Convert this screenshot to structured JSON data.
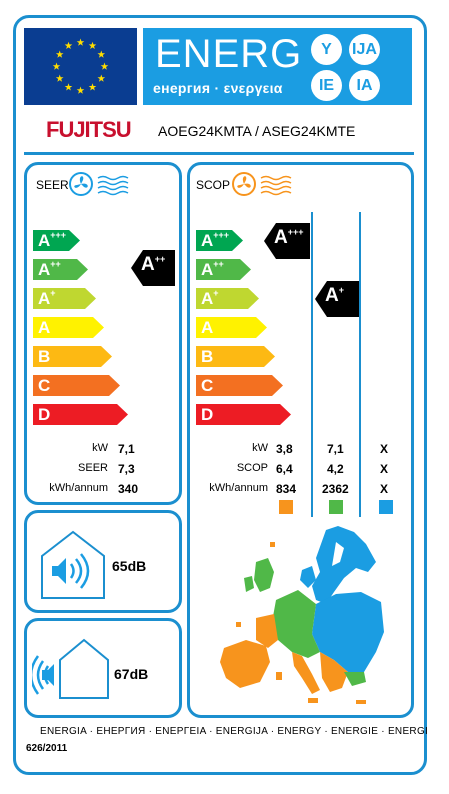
{
  "header": {
    "energy_title": "ENERG",
    "energy_subtitle": "енергия · ενεργεια",
    "languages": [
      "Y",
      "IJA",
      "IE",
      "IA"
    ],
    "brand": "FUJITSU",
    "model": "AOEG24KMTA / ASEG24KMTE"
  },
  "cooling": {
    "title": "SEER",
    "classes": [
      {
        "letter": "A",
        "sup": "+++",
        "color": "#00a651"
      },
      {
        "letter": "A",
        "sup": "++",
        "color": "#50b848"
      },
      {
        "letter": "A",
        "sup": "+",
        "color": "#bfd730"
      },
      {
        "letter": "A",
        "sup": "",
        "color": "#fff200"
      },
      {
        "letter": "B",
        "sup": "",
        "color": "#fdb913"
      },
      {
        "letter": "C",
        "sup": "",
        "color": "#f37021"
      },
      {
        "letter": "D",
        "sup": "",
        "color": "#ed1c24"
      }
    ],
    "rating": {
      "letter": "A",
      "sup": "++"
    },
    "rows": [
      {
        "label": "kW",
        "value": "7,1"
      },
      {
        "label": "SEER",
        "value": "7,3"
      },
      {
        "label": "kWh/annum",
        "value": "340"
      }
    ]
  },
  "heating": {
    "title": "SCOP",
    "classes": [
      {
        "letter": "A",
        "sup": "+++",
        "color": "#00a651"
      },
      {
        "letter": "A",
        "sup": "++",
        "color": "#50b848"
      },
      {
        "letter": "A",
        "sup": "+",
        "color": "#bfd730"
      },
      {
        "letter": "A",
        "sup": "",
        "color": "#fff200"
      },
      {
        "letter": "B",
        "sup": "",
        "color": "#fdb913"
      },
      {
        "letter": "C",
        "sup": "",
        "color": "#f37021"
      },
      {
        "letter": "D",
        "sup": "",
        "color": "#ed1c24"
      }
    ],
    "ratings": [
      {
        "letter": "A",
        "sup": "+++"
      },
      {
        "letter": "A",
        "sup": "+"
      }
    ],
    "row_labels": [
      "kW",
      "SCOP",
      "kWh/annum"
    ],
    "columns": [
      {
        "color": "#f7941d",
        "values": [
          "3,8",
          "6,4",
          "834"
        ]
      },
      {
        "color": "#50b848",
        "values": [
          "7,1",
          "4,2",
          "2362"
        ]
      },
      {
        "color": "#1b9de2",
        "values": [
          "X",
          "X",
          "X"
        ]
      }
    ]
  },
  "noise": {
    "indoor": "65dB",
    "outdoor": "67dB"
  },
  "footer": {
    "languages": "ENERGIA · ЕНЕРГИЯ · ΕΝΕΡΓΕΙΑ · ENERGIJA · ENERGY · ENERGIE · ENERGI",
    "regulation": "626/2011"
  },
  "colors": {
    "border": "#1b8fcf",
    "eu_blue": "#0a3d91",
    "eu_star": "#ffdd00",
    "brand_red": "#c8102e",
    "fan_blue": "#1b9de2",
    "fan_orange": "#f7941d"
  }
}
